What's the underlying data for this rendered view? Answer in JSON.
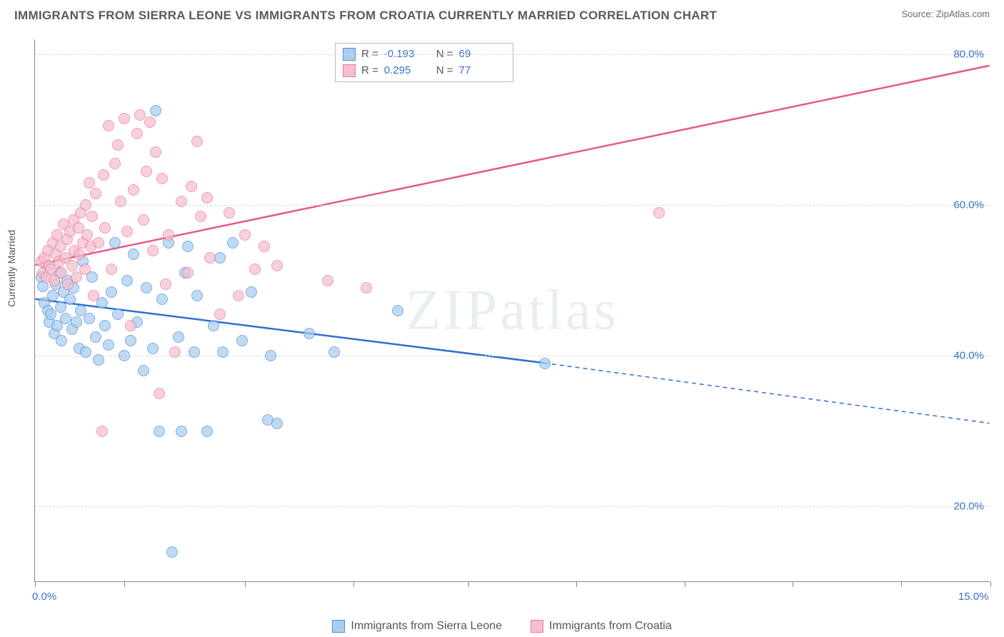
{
  "title": "IMMIGRANTS FROM SIERRA LEONE VS IMMIGRANTS FROM CROATIA CURRENTLY MARRIED CORRELATION CHART",
  "source": "Source: ZipAtlas.com",
  "ylabel": "Currently Married",
  "watermark": "ZIPatlas",
  "chart": {
    "type": "scatter",
    "xlim": [
      0,
      15
    ],
    "ylim": [
      10,
      82
    ],
    "x_ticks": [
      0,
      1.4,
      3.3,
      5.0,
      6.8,
      8.5,
      10.2,
      11.9,
      13.6,
      15
    ],
    "x_tick_labels": {
      "0": "0.0%",
      "15": "15.0%"
    },
    "y_gridlines": [
      20,
      40,
      60,
      80
    ],
    "y_tick_labels": [
      "20.0%",
      "40.0%",
      "60.0%",
      "80.0%"
    ],
    "background_color": "#ffffff",
    "grid_color": "#d8d8d8",
    "series": [
      {
        "name": "Immigrants from Sierra Leone",
        "fill": "#a9cdf0",
        "stroke": "#4d8fd6",
        "line_color": "#2f6fd0",
        "R": "-0.193",
        "N": "69",
        "trend": {
          "x1": 0,
          "y1": 47.5,
          "x2_solid": 8.0,
          "y2_solid": 39.0,
          "x2_dash": 15.0,
          "y2_dash": 31.0
        },
        "points": [
          [
            0.1,
            50.5
          ],
          [
            0.12,
            49.2
          ],
          [
            0.15,
            47.0
          ],
          [
            0.18,
            52.0
          ],
          [
            0.2,
            46.0
          ],
          [
            0.22,
            44.5
          ],
          [
            0.25,
            45.5
          ],
          [
            0.28,
            48.0
          ],
          [
            0.3,
            43.0
          ],
          [
            0.32,
            49.5
          ],
          [
            0.35,
            44.0
          ],
          [
            0.38,
            51.0
          ],
          [
            0.4,
            46.5
          ],
          [
            0.42,
            42.0
          ],
          [
            0.45,
            48.5
          ],
          [
            0.48,
            45.0
          ],
          [
            0.5,
            50.0
          ],
          [
            0.55,
            47.5
          ],
          [
            0.58,
            43.5
          ],
          [
            0.6,
            49.0
          ],
          [
            0.65,
            44.5
          ],
          [
            0.7,
            41.0
          ],
          [
            0.72,
            46.0
          ],
          [
            0.75,
            52.5
          ],
          [
            0.8,
            40.5
          ],
          [
            0.85,
            45.0
          ],
          [
            0.9,
            50.5
          ],
          [
            0.95,
            42.5
          ],
          [
            1.0,
            39.5
          ],
          [
            1.05,
            47.0
          ],
          [
            1.1,
            44.0
          ],
          [
            1.15,
            41.5
          ],
          [
            1.2,
            48.5
          ],
          [
            1.25,
            55.0
          ],
          [
            1.3,
            45.5
          ],
          [
            1.4,
            40.0
          ],
          [
            1.45,
            50.0
          ],
          [
            1.5,
            42.0
          ],
          [
            1.55,
            53.5
          ],
          [
            1.6,
            44.5
          ],
          [
            1.7,
            38.0
          ],
          [
            1.75,
            49.0
          ],
          [
            1.85,
            41.0
          ],
          [
            1.9,
            72.5
          ],
          [
            1.95,
            30.0
          ],
          [
            2.0,
            47.5
          ],
          [
            2.1,
            55.0
          ],
          [
            2.15,
            14.0
          ],
          [
            2.25,
            42.5
          ],
          [
            2.3,
            30.0
          ],
          [
            2.35,
            51.0
          ],
          [
            2.4,
            54.5
          ],
          [
            2.5,
            40.5
          ],
          [
            2.55,
            48.0
          ],
          [
            2.7,
            30.0
          ],
          [
            2.8,
            44.0
          ],
          [
            2.9,
            53.0
          ],
          [
            2.95,
            40.5
          ],
          [
            3.1,
            55.0
          ],
          [
            3.25,
            42.0
          ],
          [
            3.4,
            48.5
          ],
          [
            3.65,
            31.5
          ],
          [
            3.7,
            40.0
          ],
          [
            3.8,
            31.0
          ],
          [
            4.3,
            43.0
          ],
          [
            4.7,
            40.5
          ],
          [
            5.7,
            46.0
          ],
          [
            8.0,
            39.0
          ]
        ]
      },
      {
        "name": "Immigrants from Croatia",
        "fill": "#f5bfcd",
        "stroke": "#e57a9a",
        "line_color": "#e45a86",
        "R": "0.295",
        "N": "77",
        "trend": {
          "x1": 0,
          "y1": 52.0,
          "x2_solid": 15.0,
          "y2_solid": 78.5,
          "x2_dash": 15.0,
          "y2_dash": 78.5
        },
        "points": [
          [
            0.1,
            52.5
          ],
          [
            0.12,
            51.0
          ],
          [
            0.15,
            53.0
          ],
          [
            0.18,
            50.5
          ],
          [
            0.2,
            54.0
          ],
          [
            0.22,
            52.0
          ],
          [
            0.25,
            51.5
          ],
          [
            0.28,
            55.0
          ],
          [
            0.3,
            50.0
          ],
          [
            0.32,
            53.5
          ],
          [
            0.35,
            56.0
          ],
          [
            0.38,
            52.5
          ],
          [
            0.4,
            54.5
          ],
          [
            0.42,
            51.0
          ],
          [
            0.45,
            57.5
          ],
          [
            0.48,
            53.0
          ],
          [
            0.5,
            55.5
          ],
          [
            0.52,
            49.5
          ],
          [
            0.55,
            56.5
          ],
          [
            0.58,
            52.0
          ],
          [
            0.6,
            58.0
          ],
          [
            0.62,
            54.0
          ],
          [
            0.65,
            50.5
          ],
          [
            0.68,
            57.0
          ],
          [
            0.7,
            53.5
          ],
          [
            0.72,
            59.0
          ],
          [
            0.75,
            55.0
          ],
          [
            0.78,
            51.5
          ],
          [
            0.8,
            60.0
          ],
          [
            0.82,
            56.0
          ],
          [
            0.85,
            63.0
          ],
          [
            0.88,
            54.5
          ],
          [
            0.9,
            58.5
          ],
          [
            0.92,
            48.0
          ],
          [
            0.95,
            61.5
          ],
          [
            1.0,
            55.0
          ],
          [
            1.05,
            30.0
          ],
          [
            1.08,
            64.0
          ],
          [
            1.1,
            57.0
          ],
          [
            1.15,
            70.5
          ],
          [
            1.2,
            51.5
          ],
          [
            1.25,
            65.5
          ],
          [
            1.3,
            68.0
          ],
          [
            1.35,
            60.5
          ],
          [
            1.4,
            71.5
          ],
          [
            1.45,
            56.5
          ],
          [
            1.5,
            44.0
          ],
          [
            1.55,
            62.0
          ],
          [
            1.6,
            69.5
          ],
          [
            1.65,
            72.0
          ],
          [
            1.7,
            58.0
          ],
          [
            1.75,
            64.5
          ],
          [
            1.8,
            71.0
          ],
          [
            1.85,
            54.0
          ],
          [
            1.9,
            67.0
          ],
          [
            1.95,
            35.0
          ],
          [
            2.0,
            63.5
          ],
          [
            2.05,
            49.5
          ],
          [
            2.1,
            56.0
          ],
          [
            2.2,
            40.5
          ],
          [
            2.3,
            60.5
          ],
          [
            2.4,
            51.0
          ],
          [
            2.45,
            62.5
          ],
          [
            2.55,
            68.5
          ],
          [
            2.6,
            58.5
          ],
          [
            2.7,
            61.0
          ],
          [
            2.75,
            53.0
          ],
          [
            2.9,
            45.5
          ],
          [
            3.05,
            59.0
          ],
          [
            3.2,
            48.0
          ],
          [
            3.3,
            56.0
          ],
          [
            3.45,
            51.5
          ],
          [
            3.6,
            54.5
          ],
          [
            3.8,
            52.0
          ],
          [
            4.6,
            50.0
          ],
          [
            5.2,
            49.0
          ],
          [
            9.8,
            59.0
          ]
        ]
      }
    ]
  },
  "bottom_legend": [
    {
      "label": "Immigrants from Sierra Leone",
      "fill": "#a9cdf0",
      "stroke": "#4d8fd6"
    },
    {
      "label": "Immigrants from Croatia",
      "fill": "#f5bfcd",
      "stroke": "#e57a9a"
    }
  ]
}
